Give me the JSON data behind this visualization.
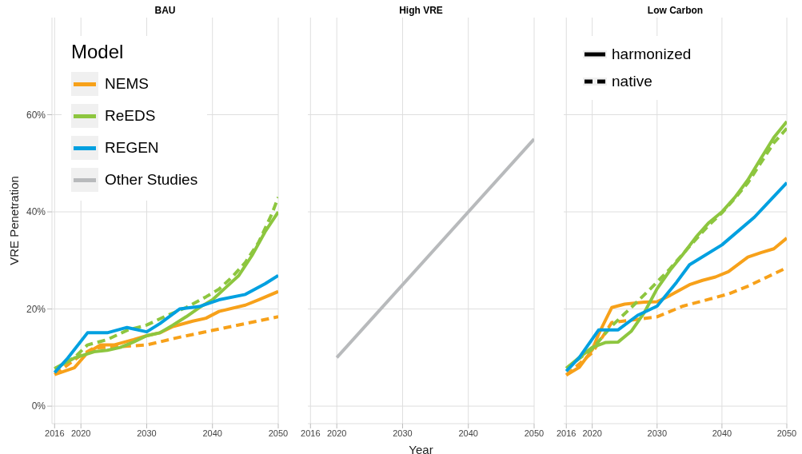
{
  "chart_data": [
    {
      "type": "line",
      "title": "BAU",
      "ylabel": "VRE Penetration",
      "legend": "top left",
      "legend_title": "Model",
      "grid": true,
      "xlim": [
        2015.6,
        2050
      ],
      "xticks": [
        2016,
        2020,
        2030,
        2040,
        2050
      ],
      "ylim": [
        -3.6,
        80
      ],
      "yticks": [
        {
          "value": 0,
          "label": "0%"
        },
        {
          "value": 20,
          "label": "20%"
        },
        {
          "value": 40,
          "label": "40%"
        },
        {
          "value": 60,
          "label": "60%"
        }
      ],
      "series": [
        {
          "name": "NEMS",
          "color": "#f7a11a",
          "line_style": "solid",
          "x": [
            2016,
            2019,
            2021,
            2023,
            2025,
            2028,
            2030,
            2032,
            2034,
            2037,
            2039,
            2041,
            2045,
            2047,
            2050
          ],
          "values": [
            6.5,
            7.9,
            11.0,
            12.6,
            12.6,
            13.7,
            14.5,
            15.1,
            16.4,
            17.5,
            18.1,
            19.5,
            20.8,
            21.9,
            23.6
          ]
        },
        {
          "color": "#f7a11a",
          "line_style": "dashed",
          "x": [
            2016,
            2020,
            2022,
            2024,
            2030,
            2035,
            2040,
            2045,
            2050
          ],
          "values": [
            6.5,
            10.5,
            12.0,
            12.1,
            12.6,
            14.2,
            15.6,
            17.0,
            18.4
          ]
        },
        {
          "name": "ReEDS",
          "color": "#8dc63f",
          "line_style": "solid",
          "x": [
            2016,
            2019,
            2022,
            2024,
            2026,
            2028,
            2030,
            2032,
            2034,
            2036,
            2038,
            2040,
            2042,
            2044,
            2046,
            2048,
            2050
          ],
          "values": [
            7.7,
            9.9,
            11.2,
            11.5,
            12.1,
            13.2,
            14.5,
            15.1,
            16.7,
            18.4,
            20.3,
            21.9,
            24.4,
            26.9,
            31.0,
            35.9,
            40.0
          ]
        },
        {
          "color": "#8dc63f",
          "line_style": "dashed",
          "x": [
            2016,
            2019,
            2021,
            2024,
            2027,
            2030,
            2033,
            2036,
            2039,
            2041,
            2043,
            2045,
            2047,
            2049,
            2050
          ],
          "values": [
            7.7,
            10.0,
            12.6,
            13.7,
            15.6,
            16.7,
            18.6,
            20.3,
            22.5,
            24.1,
            26.6,
            29.6,
            33.7,
            39.5,
            43.0
          ]
        },
        {
          "name": "REGEN",
          "color": "#00a0e0",
          "line_style": "solid",
          "x": [
            2016,
            2018,
            2021,
            2024,
            2027,
            2030,
            2032,
            2035,
            2038,
            2041,
            2045,
            2048,
            2050
          ],
          "values": [
            6.9,
            9.9,
            15.1,
            15.1,
            16.2,
            15.3,
            17.0,
            20.0,
            20.5,
            21.9,
            23.0,
            25.2,
            26.9
          ]
        }
      ]
    },
    {
      "type": "line",
      "title": "High VRE",
      "xlabel": "Year",
      "grid": true,
      "tick_labels": "x",
      "xlim": [
        2015.6,
        2050
      ],
      "xticks": [
        2016,
        2020,
        2030,
        2040,
        2050
      ],
      "ylim": [
        -3.6,
        80
      ],
      "yticks": [
        0,
        20,
        40,
        60
      ],
      "series": [
        {
          "name": "Other Studies",
          "color": "#b8babc",
          "line_style": "solid",
          "x": [
            2020,
            2050
          ],
          "values": [
            10,
            55
          ]
        }
      ]
    },
    {
      "type": "line",
      "title": "Low Carbon",
      "legend": "top left",
      "annotations": [
        "harmonized",
        "native"
      ],
      "grid": true,
      "tick_labels": "x",
      "xlim": [
        2015.6,
        2050
      ],
      "xticks": [
        2016,
        2020,
        2030,
        2040,
        2050
      ],
      "ylim": [
        -3.6,
        80
      ],
      "yticks": [
        0,
        20,
        40,
        60
      ],
      "series": [
        {
          "color": "#f7a11a",
          "line_style": "solid",
          "x": [
            2016,
            2018,
            2020,
            2021,
            2023,
            2025,
            2028,
            2030,
            2032,
            2035,
            2037,
            2039,
            2041,
            2044,
            2046,
            2048,
            2050
          ],
          "values": [
            6.4,
            8.0,
            11.6,
            14.9,
            20.3,
            21.0,
            21.4,
            21.5,
            22.8,
            25.0,
            25.9,
            26.6,
            27.7,
            30.7,
            31.6,
            32.4,
            34.6
          ]
        },
        {
          "color": "#f7a11a",
          "line_style": "dashed",
          "x": [
            2016,
            2020,
            2023,
            2030,
            2034,
            2038,
            2041,
            2044,
            2047,
            2050
          ],
          "values": [
            6.4,
            11.0,
            17.2,
            18.4,
            20.6,
            22.0,
            23.1,
            24.7,
            26.6,
            28.5
          ]
        },
        {
          "color": "#8dc63f",
          "line_style": "solid",
          "x": [
            2016,
            2018,
            2020,
            2022,
            2024,
            2026,
            2028,
            2030,
            2032,
            2034,
            2036,
            2038,
            2040,
            2042,
            2044,
            2046,
            2048,
            2050
          ],
          "values": [
            7.8,
            10.0,
            12.1,
            13.1,
            13.2,
            15.4,
            19.2,
            24.2,
            28.0,
            31.3,
            34.8,
            37.8,
            40.0,
            43.0,
            46.6,
            51.0,
            55.3,
            58.6
          ]
        },
        {
          "color": "#8dc63f",
          "line_style": "dashed",
          "x": [
            2016,
            2020,
            2023,
            2026,
            2029,
            2032,
            2035,
            2038,
            2040,
            2042,
            2044,
            2046,
            2048,
            2050
          ],
          "values": [
            7.8,
            11.8,
            16.5,
            20.3,
            24.2,
            28.3,
            32.9,
            37.3,
            39.8,
            42.8,
            46.0,
            50.1,
            54.2,
            57.2
          ]
        },
        {
          "color": "#00a0e0",
          "line_style": "solid",
          "x": [
            2016,
            2018,
            2021,
            2024,
            2027,
            2030,
            2033,
            2035,
            2040,
            2045,
            2050
          ],
          "values": [
            7.2,
            10.0,
            15.7,
            15.7,
            18.7,
            20.6,
            25.5,
            29.1,
            33.2,
            38.9,
            46.0
          ]
        }
      ]
    }
  ]
}
